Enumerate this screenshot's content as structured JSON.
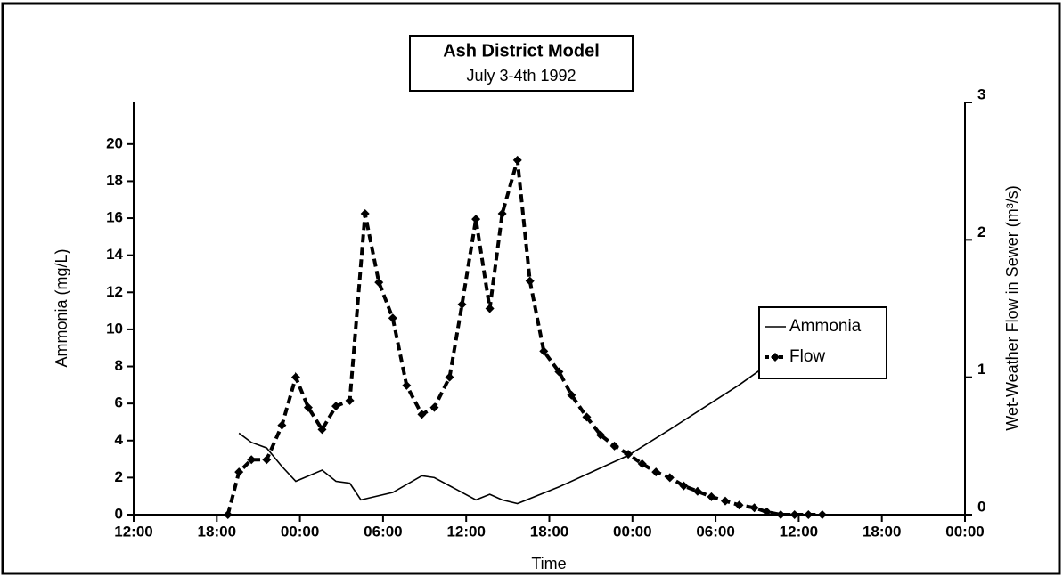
{
  "chart_data": {
    "type": "line",
    "title": "Ash District Model",
    "subtitle": "July 3-4th  1992",
    "x_label": "Time",
    "y_label": "Ammonia (mg/L)",
    "y2_label": "Wet-Weather Flow in Sewer (m³/s)",
    "xlim": [
      0,
      60
    ],
    "xticks": [
      {
        "value": 0,
        "label": "12:00"
      },
      {
        "value": 6,
        "label": "18:00"
      },
      {
        "value": 12,
        "label": "00:00"
      },
      {
        "value": 18,
        "label": "06:00"
      },
      {
        "value": 24,
        "label": "12:00"
      },
      {
        "value": 30,
        "label": "18:00"
      },
      {
        "value": 36,
        "label": "00:00"
      },
      {
        "value": 42,
        "label": "06:00"
      },
      {
        "value": 48,
        "label": "12:00"
      },
      {
        "value": 54,
        "label": "18:00"
      },
      {
        "value": 60,
        "label": "00:00"
      }
    ],
    "ylim": [
      0,
      22.25
    ],
    "yticks": [
      0,
      2,
      4,
      6,
      8,
      10,
      12,
      14,
      16,
      18,
      20
    ],
    "y2lim": [
      0,
      3
    ],
    "y2ticks": [
      0,
      1,
      2,
      3
    ],
    "legend": "right",
    "series": [
      {
        "name": "Ammonia",
        "color": "#000000",
        "style": "solid",
        "x": [
          7.6,
          8.5,
          9.6,
          10.7,
          11.7,
          13.6,
          14.6,
          15.6,
          16.4,
          18.7,
          20.8,
          21.7,
          24.7,
          25.7,
          26.6,
          27.7,
          30.7,
          35.7,
          38.7,
          43.7,
          46.7
        ],
        "values": [
          4.4,
          3.9,
          3.6,
          2.6,
          1.8,
          2.4,
          1.8,
          1.7,
          0.8,
          1.2,
          2.1,
          2.0,
          0.8,
          1.1,
          0.8,
          0.6,
          1.5,
          3.2,
          4.6,
          7.0,
          8.6
        ]
      },
      {
        "name": "Flow",
        "color": "#000000",
        "style": "dashed",
        "axis": "y2",
        "x": [
          6.8,
          7.6,
          8.5,
          9.6,
          10.7,
          11.7,
          12.6,
          13.6,
          14.6,
          15.6,
          16.7,
          17.7,
          18.7,
          19.7,
          20.8,
          21.7,
          22.8,
          23.7,
          24.7,
          25.7,
          26.6,
          27.7,
          28.6,
          29.6,
          30.7,
          31.6,
          32.7,
          33.7,
          34.7,
          35.7,
          36.7,
          37.7,
          38.7,
          39.7,
          40.7,
          41.7,
          42.7,
          43.7,
          44.8,
          45.7,
          46.7,
          47.7,
          48.7,
          49.7
        ],
        "values": [
          0,
          0.31,
          0.4,
          0.4,
          0.65,
          1.0,
          0.78,
          0.62,
          0.79,
          0.83,
          2.19,
          1.69,
          1.43,
          0.94,
          0.73,
          0.78,
          1.0,
          1.53,
          2.15,
          1.5,
          2.19,
          2.58,
          1.7,
          1.19,
          1.04,
          0.87,
          0.71,
          0.58,
          0.5,
          0.44,
          0.37,
          0.31,
          0.27,
          0.21,
          0.17,
          0.13,
          0.1,
          0.07,
          0.05,
          0.02,
          0,
          0,
          0,
          0
        ]
      }
    ]
  }
}
